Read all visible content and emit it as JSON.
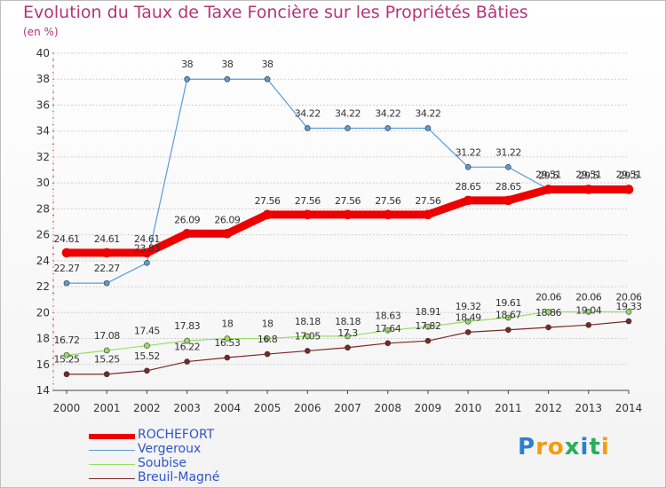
{
  "chart_data": {
    "type": "line",
    "title": "Evolution du Taux de Taxe Foncière sur les Propriétés Bâties",
    "subtitle": "(en %)",
    "xlabel": "",
    "ylabel": "",
    "ylim": [
      14,
      40
    ],
    "yticks": [
      "14",
      "16",
      "18",
      "20",
      "22",
      "24",
      "26",
      "28",
      "30",
      "32",
      "34",
      "36",
      "38",
      "40"
    ],
    "x": [
      "2000",
      "2001",
      "2002",
      "2003",
      "2004",
      "2005",
      "2006",
      "2007",
      "2008",
      "2009",
      "2010",
      "2011",
      "2012",
      "2013",
      "2014"
    ],
    "series": [
      {
        "name": "ROCHEFORT",
        "color": "#ee0000",
        "values": [
          24.61,
          24.61,
          24.61,
          26.09,
          26.09,
          27.56,
          27.56,
          27.56,
          27.56,
          27.56,
          28.65,
          28.65,
          29.5,
          29.5,
          29.5
        ],
        "labels": [
          "24.61",
          "24.61",
          "24.61",
          "26.09",
          "26.09",
          "27.56",
          "27.56",
          "27.56",
          "27.56",
          "27.56",
          "28.65",
          "28.65",
          "29.5",
          "29.5",
          "29.5"
        ]
      },
      {
        "name": "Vergeroux",
        "color": "#5b9bd5",
        "values": [
          22.27,
          22.27,
          23.83,
          38,
          38,
          38,
          34.22,
          34.22,
          34.22,
          34.22,
          31.22,
          31.22,
          29.51,
          29.51,
          29.51
        ],
        "labels": [
          "22.27",
          "22.27",
          "23.83",
          "38",
          "38",
          "38",
          "34.22",
          "34.22",
          "34.22",
          "34.22",
          "31.22",
          "31.22",
          "29.51",
          "29.51",
          "29.51"
        ]
      },
      {
        "name": "Soubise",
        "color": "#99dd66",
        "values": [
          16.72,
          17.08,
          17.45,
          17.83,
          18,
          18,
          18.18,
          18.18,
          18.63,
          18.91,
          19.32,
          19.61,
          20.06,
          20.06,
          20.06
        ],
        "labels": [
          "16.72",
          "17.08",
          "17.45",
          "17.83",
          "18",
          "18",
          "18.18",
          "18.18",
          "18.63",
          "18.91",
          "19.32",
          "19.61",
          "20.06",
          "20.06",
          "20.06"
        ]
      },
      {
        "name": "Breuil-Magné",
        "color": "#7a2828",
        "values": [
          15.25,
          15.25,
          15.52,
          16.22,
          16.53,
          16.8,
          17.05,
          17.3,
          17.64,
          17.82,
          18.49,
          18.67,
          18.86,
          19.04,
          19.33
        ],
        "labels": [
          "15.25",
          "15.25",
          "15.52",
          "16.22",
          "16.53",
          "16.8",
          "17.05",
          "17.3",
          "17.64",
          "17.82",
          "18.49",
          "18.67",
          "18.86",
          "19.04",
          "19.33"
        ]
      }
    ]
  },
  "logo": {
    "letters": [
      "P",
      "r",
      "o",
      "x",
      "i",
      "t",
      "i"
    ],
    "colors": [
      "#2b7fd1",
      "#f39c12",
      "#f39c12",
      "#27ae60",
      "#2b7fd1",
      "#27ae60",
      "#f39c12"
    ]
  }
}
